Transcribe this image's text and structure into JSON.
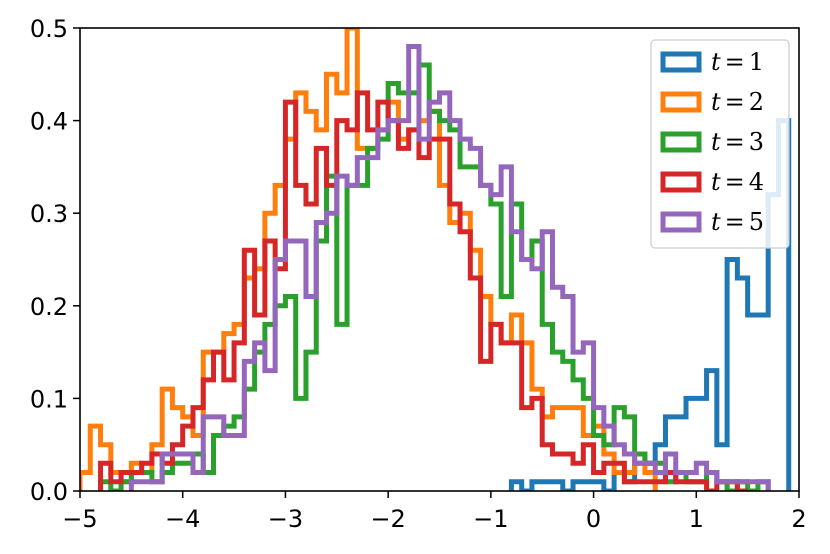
{
  "chart_data": {
    "type": "histogram",
    "title": "",
    "xlabel": "",
    "ylabel": "",
    "xlim": [
      -5,
      2
    ],
    "ylim": [
      0,
      0.5
    ],
    "xticks": [
      "−5",
      "−4",
      "−3",
      "−2",
      "−1",
      "0",
      "1",
      "2"
    ],
    "yticks": [
      "0.0",
      "0.1",
      "0.2",
      "0.3",
      "0.4",
      "0.5"
    ],
    "grid": false,
    "legend_position": "top-right",
    "series": [
      {
        "name": "t = 1",
        "legend_t": "t",
        "legend_value": "1",
        "color": "#1f77b4",
        "bin_width": 0.1,
        "edges": [
          -0.8,
          1.9
        ],
        "values": [
          0.01,
          0.0,
          0.01,
          0.01,
          0.01,
          0.0,
          0.01,
          0.01,
          0.01,
          0.0,
          0.02,
          0.01,
          0.03,
          0.03,
          0.05,
          0.08,
          0.08,
          0.1,
          0.1,
          0.13,
          0.05,
          0.25,
          0.23,
          0.19,
          0.19,
          0.32,
          0.4
        ]
      },
      {
        "name": "t = 2",
        "legend_t": "t",
        "legend_value": "2",
        "color": "#ff7f0e",
        "bin_width": 0.1,
        "edges": [
          -5.0,
          0.6
        ],
        "values": [
          0.02,
          0.07,
          0.05,
          0.02,
          0.01,
          0.03,
          0.02,
          0.05,
          0.11,
          0.09,
          0.08,
          0.06,
          0.15,
          0.15,
          0.17,
          0.18,
          0.23,
          0.24,
          0.3,
          0.33,
          0.38,
          0.43,
          0.41,
          0.39,
          0.45,
          0.43,
          0.5,
          0.37,
          0.37,
          0.39,
          0.42,
          0.38,
          0.39,
          0.4,
          0.41,
          0.33,
          0.29,
          0.3,
          0.26,
          0.21,
          0.18,
          0.16,
          0.19,
          0.16,
          0.11,
          0.08,
          0.09,
          0.09,
          0.09,
          0.06,
          0.07,
          0.04,
          0.02,
          0.02,
          0.04,
          0.02
        ]
      },
      {
        "name": "t = 3",
        "legend_t": "t",
        "legend_value": "3",
        "color": "#2ca02c",
        "bin_width": 0.1,
        "edges": [
          -4.8,
          1.7
        ],
        "values": [
          0.01,
          0.0,
          0.01,
          0.02,
          0.02,
          0.01,
          0.02,
          0.03,
          0.03,
          0.04,
          0.02,
          0.06,
          0.07,
          0.08,
          0.11,
          0.15,
          0.18,
          0.2,
          0.21,
          0.1,
          0.15,
          0.27,
          0.34,
          0.18,
          0.33,
          0.33,
          0.37,
          0.38,
          0.44,
          0.43,
          0.43,
          0.46,
          0.41,
          0.4,
          0.39,
          0.35,
          0.35,
          0.33,
          0.31,
          0.21,
          0.31,
          0.25,
          0.27,
          0.18,
          0.15,
          0.14,
          0.12,
          0.1,
          0.06,
          0.05,
          0.09,
          0.08,
          0.04,
          0.03,
          0.03,
          0.01,
          0.02,
          0.01,
          0.01,
          0.02,
          0.01,
          0.0,
          0.01,
          0.0,
          0.01
        ]
      },
      {
        "name": "t = 4",
        "legend_t": "t",
        "legend_value": "4",
        "color": "#d62728",
        "bin_width": 0.1,
        "edges": [
          -4.8,
          1.5
        ],
        "values": [
          0.03,
          0.01,
          0.02,
          0.02,
          0.03,
          0.04,
          0.03,
          0.05,
          0.07,
          0.09,
          0.12,
          0.15,
          0.12,
          0.16,
          0.26,
          0.19,
          0.27,
          0.24,
          0.42,
          0.33,
          0.31,
          0.37,
          0.33,
          0.4,
          0.39,
          0.43,
          0.39,
          0.42,
          0.4,
          0.37,
          0.39,
          0.36,
          0.38,
          0.38,
          0.31,
          0.28,
          0.23,
          0.14,
          0.18,
          0.16,
          0.16,
          0.09,
          0.1,
          0.05,
          0.04,
          0.04,
          0.03,
          0.05,
          0.02,
          0.03,
          0.03,
          0.01,
          0.01,
          0.01,
          0.01,
          0.02,
          0.01,
          0.01,
          0.01,
          0.0,
          0.01,
          0.01,
          0.0
        ]
      },
      {
        "name": "t = 5",
        "legend_t": "t",
        "legend_value": "5",
        "color": "#9467bd",
        "bin_width": 0.1,
        "edges": [
          -4.5,
          1.7
        ],
        "values": [
          0.01,
          0.01,
          0.01,
          0.04,
          0.04,
          0.04,
          0.02,
          0.08,
          0.08,
          0.06,
          0.06,
          0.14,
          0.16,
          0.13,
          0.25,
          0.27,
          0.27,
          0.21,
          0.29,
          0.3,
          0.34,
          0.33,
          0.36,
          0.36,
          0.39,
          0.4,
          0.4,
          0.48,
          0.38,
          0.42,
          0.43,
          0.4,
          0.38,
          0.37,
          0.33,
          0.32,
          0.35,
          0.28,
          0.25,
          0.24,
          0.28,
          0.22,
          0.21,
          0.15,
          0.16,
          0.09,
          0.07,
          0.05,
          0.04,
          0.03,
          0.03,
          0.02,
          0.04,
          0.02,
          0.02,
          0.03,
          0.02,
          0.01,
          0.01,
          0.01,
          0.01,
          0.01
        ]
      }
    ]
  }
}
